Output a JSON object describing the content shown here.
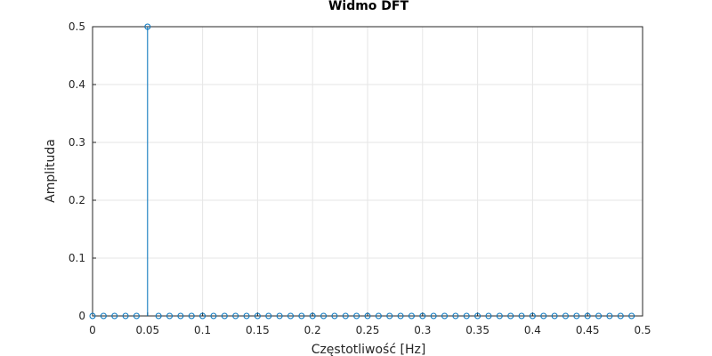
{
  "chart_data": {
    "type": "stem",
    "title": "Widmo DFT",
    "xlabel": "Częstotliwość [Hz]",
    "ylabel": "Amplituda",
    "xlim": [
      0,
      0.5
    ],
    "ylim": [
      0,
      0.5
    ],
    "xticks": [
      "0",
      "0.05",
      "0.1",
      "0.15",
      "0.2",
      "0.25",
      "0.3",
      "0.35",
      "0.4",
      "0.45",
      "0.5"
    ],
    "yticks": [
      "0",
      "0.1",
      "0.2",
      "0.3",
      "0.4",
      "0.5"
    ],
    "grid": true,
    "x": [
      0,
      0.01,
      0.02,
      0.03,
      0.04,
      0.05,
      0.06,
      0.07,
      0.08,
      0.09,
      0.1,
      0.11,
      0.12,
      0.13,
      0.14,
      0.15,
      0.16,
      0.17,
      0.18,
      0.19,
      0.2,
      0.21,
      0.22,
      0.23,
      0.24,
      0.25,
      0.26,
      0.27,
      0.28,
      0.29,
      0.3,
      0.31,
      0.32,
      0.33,
      0.34,
      0.35,
      0.36,
      0.37,
      0.38,
      0.39,
      0.4,
      0.41,
      0.42,
      0.43,
      0.44,
      0.45,
      0.46,
      0.47,
      0.48,
      0.49
    ],
    "y": [
      0,
      0,
      0,
      0,
      0,
      0.5,
      0,
      0,
      0,
      0,
      0,
      0,
      0,
      0,
      0,
      0,
      0,
      0,
      0,
      0,
      0,
      0,
      0,
      0,
      0,
      0,
      0,
      0,
      0,
      0,
      0,
      0,
      0,
      0,
      0,
      0,
      0,
      0,
      0,
      0,
      0,
      0,
      0,
      0,
      0,
      0,
      0,
      0,
      0,
      0
    ],
    "color": "#0072bd"
  }
}
